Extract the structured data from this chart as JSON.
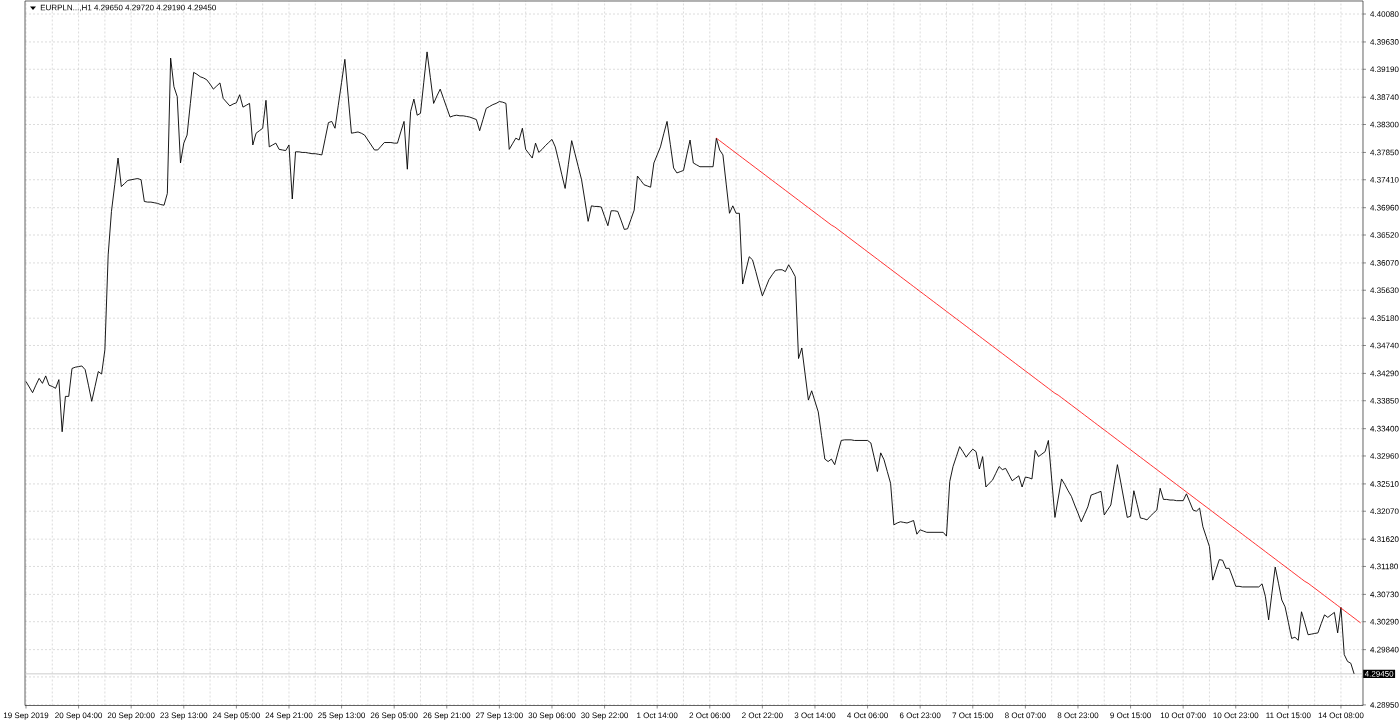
{
  "chart_data": {
    "type": "line",
    "title": "EURPLN...,H1 4.29650 4.29720 4.29190 4.29450",
    "grid": true,
    "categories": [
      "19 Sep 2019",
      null,
      null,
      null,
      null,
      null,
      null,
      null,
      null,
      null,
      null,
      null,
      null,
      null,
      null,
      null,
      "20 Sep 04:00",
      null,
      null,
      null,
      null,
      null,
      null,
      null,
      null,
      null,
      null,
      null,
      null,
      null,
      null,
      null,
      "20 Sep 20:00",
      null,
      null,
      null,
      null,
      null,
      null,
      null,
      null,
      null,
      null,
      null,
      null,
      null,
      null,
      null,
      "23 Sep 13:00",
      null,
      null,
      null,
      null,
      null,
      null,
      null,
      null,
      null,
      null,
      null,
      null,
      null,
      null,
      null,
      "24 Sep 05:00",
      null,
      null,
      null,
      null,
      null,
      null,
      null,
      null,
      null,
      null,
      null,
      null,
      null,
      null,
      null,
      "24 Sep 21:00",
      null,
      null,
      null,
      null,
      null,
      null,
      null,
      null,
      null,
      null,
      null,
      null,
      null,
      null,
      null,
      "25 Sep 13:00",
      null,
      null,
      null,
      null,
      null,
      null,
      null,
      null,
      null,
      null,
      null,
      null,
      null,
      null,
      null,
      "26 Sep 05:00",
      null,
      null,
      null,
      null,
      null,
      null,
      null,
      null,
      null,
      null,
      null,
      null,
      null,
      null,
      null,
      "26 Sep 21:00",
      null,
      null,
      null,
      null,
      null,
      null,
      null,
      null,
      null,
      null,
      null,
      null,
      null,
      null,
      null,
      "27 Sep 13:00",
      null,
      null,
      null,
      null,
      null,
      null,
      null,
      null,
      null,
      null,
      null,
      null,
      null,
      null,
      null,
      "30 Sep 06:00",
      null,
      null,
      null,
      null,
      null,
      null,
      null,
      null,
      null,
      null,
      null,
      null,
      null,
      null,
      null,
      "30 Sep 22:00",
      null,
      null,
      null,
      null,
      null,
      null,
      null,
      null,
      null,
      null,
      null,
      null,
      null,
      null,
      null,
      "1 Oct 14:00",
      null,
      null,
      null,
      null,
      null,
      null,
      null,
      null,
      null,
      null,
      null,
      null,
      null,
      null,
      null,
      "2 Oct 06:00",
      null,
      null,
      null,
      null,
      null,
      null,
      null,
      null,
      null,
      null,
      null,
      null,
      null,
      null,
      null,
      "2 Oct 22:00",
      null,
      null,
      null,
      null,
      null,
      null,
      null,
      null,
      null,
      null,
      null,
      null,
      null,
      null,
      null,
      "3 Oct 14:00",
      null,
      null,
      null,
      null,
      null,
      null,
      null,
      null,
      null,
      null,
      null,
      null,
      null,
      null,
      null,
      "4 Oct 06:00",
      null,
      null,
      null,
      null,
      null,
      null,
      null,
      null,
      null,
      null,
      null,
      null,
      null,
      null,
      null,
      "6 Oct 23:00",
      null,
      null,
      null,
      null,
      null,
      null,
      null,
      null,
      null,
      null,
      null,
      null,
      null,
      null,
      null,
      "7 Oct 15:00",
      null,
      null,
      null,
      null,
      null,
      null,
      null,
      null,
      null,
      null,
      null,
      null,
      null,
      null,
      null,
      "8 Oct 07:00",
      null,
      null,
      null,
      null,
      null,
      null,
      null,
      null,
      null,
      null,
      null,
      null,
      null,
      null,
      null,
      "8 Oct 23:00",
      null,
      null,
      null,
      null,
      null,
      null,
      null,
      null,
      null,
      null,
      null,
      null,
      null,
      null,
      null,
      "9 Oct 15:00",
      null,
      null,
      null,
      null,
      null,
      null,
      null,
      null,
      null,
      null,
      null,
      null,
      null,
      null,
      null,
      "10 Oct 07:00",
      null,
      null,
      null,
      null,
      null,
      null,
      null,
      null,
      null,
      null,
      null,
      null,
      null,
      null,
      null,
      "10 Oct 23:00",
      null,
      null,
      null,
      null,
      null,
      null,
      null,
      null,
      null,
      null,
      null,
      null,
      null,
      null,
      null,
      "11 Oct 15:00",
      null,
      null,
      null,
      null,
      null,
      null,
      null,
      null,
      null,
      null,
      null,
      null,
      null,
      null,
      null,
      "14 Oct 08:00",
      null,
      null,
      null,
      null,
      null,
      null
    ],
    "ylim": [
      4.2894,
      4.4029
    ],
    "yticks": [
      {
        "value": 4.4008,
        "label": "4.40080"
      },
      {
        "value": 4.3963,
        "label": "4.39630"
      },
      {
        "value": 4.3919,
        "label": "4.39190"
      },
      {
        "value": 4.3874,
        "label": "4.38740"
      },
      {
        "value": 4.383,
        "label": "4.38300"
      },
      {
        "value": 4.3785,
        "label": "4.37850"
      },
      {
        "value": 4.3741,
        "label": "4.37410"
      },
      {
        "value": 4.3696,
        "label": "4.36960"
      },
      {
        "value": 4.3652,
        "label": "4.36520"
      },
      {
        "value": 4.3607,
        "label": "4.36070"
      },
      {
        "value": 4.3563,
        "label": "4.35630"
      },
      {
        "value": 4.3518,
        "label": "4.35180"
      },
      {
        "value": 4.3474,
        "label": "4.34740"
      },
      {
        "value": 4.3429,
        "label": "4.34290"
      },
      {
        "value": 4.3385,
        "label": "4.33850"
      },
      {
        "value": 4.334,
        "label": "4.33400"
      },
      {
        "value": 4.3296,
        "label": "4.32960"
      },
      {
        "value": 4.3251,
        "label": "4.32510"
      },
      {
        "value": 4.3207,
        "label": "4.32070"
      },
      {
        "value": 4.3162,
        "label": "4.31620"
      },
      {
        "value": 4.3118,
        "label": "4.31180"
      },
      {
        "value": 4.3073,
        "label": "4.30730"
      },
      {
        "value": 4.3029,
        "label": "4.30290"
      },
      {
        "value": 4.2984,
        "label": "4.29840"
      },
      {
        "value": 4.294,
        "label": null
      },
      {
        "value": 4.2895,
        "label": "4.28950"
      }
    ],
    "ref_lines": [
      {
        "axis": "y",
        "value": 4.2945,
        "label": "4.29450",
        "color": "#c0c0c0"
      }
    ],
    "series": [
      {
        "color": "#000000",
        "values": [
          4.3416,
          4.3407,
          4.3398,
          4.341,
          4.3421,
          4.3413,
          4.3425,
          4.341,
          4.3408,
          4.3405,
          4.3419,
          4.3335,
          4.3392,
          4.3392,
          4.3437,
          4.3439,
          4.344,
          4.3441,
          4.3435,
          4.341,
          4.3384,
          4.3408,
          4.3432,
          4.3428,
          4.3467,
          4.362,
          4.369,
          4.3733,
          4.3776,
          4.373,
          4.3735,
          4.374,
          4.3741,
          4.3742,
          4.3743,
          4.3741,
          4.3706,
          4.3705,
          4.3705,
          4.3704,
          4.3703,
          4.3701,
          4.37,
          4.3719,
          4.3937,
          4.3891,
          4.3875,
          4.3768,
          4.38,
          4.3813,
          4.3864,
          4.3914,
          4.3911,
          4.3907,
          4.3905,
          4.3902,
          4.3895,
          4.3887,
          4.3892,
          4.3897,
          4.3872,
          4.3866,
          4.386,
          4.3863,
          4.3865,
          4.3878,
          4.3858,
          4.3861,
          4.3864,
          4.3797,
          4.3816,
          4.382,
          4.3824,
          4.3869,
          4.3794,
          4.3797,
          4.38,
          4.379,
          4.3789,
          4.3788,
          4.3797,
          4.371,
          4.3786,
          4.3786,
          4.3785,
          4.3785,
          4.3784,
          4.3783,
          4.3783,
          4.3782,
          4.3781,
          4.3807,
          4.3833,
          4.3835,
          4.3824,
          4.3861,
          4.3898,
          4.3935,
          4.3876,
          4.3816,
          4.3817,
          4.3818,
          4.3816,
          4.3813,
          4.3805,
          4.3797,
          4.3789,
          4.3789,
          4.3795,
          4.3801,
          4.3801,
          4.3801,
          4.38,
          4.38,
          4.3818,
          4.3835,
          4.3758,
          4.3851,
          4.3871,
          4.3845,
          4.3848,
          4.3898,
          4.3947,
          4.3906,
          4.3864,
          4.3876,
          4.3887,
          4.3872,
          4.3857,
          4.3842,
          4.3844,
          4.3845,
          4.3844,
          4.3844,
          4.3843,
          4.3842,
          4.384,
          4.3838,
          4.382,
          4.3838,
          4.3856,
          4.3859,
          4.3862,
          4.3864,
          4.3867,
          4.3866,
          4.3864,
          4.379,
          4.3799,
          4.3808,
          4.3805,
          4.3824,
          4.379,
          4.3783,
          4.3776,
          4.38,
          4.3785,
          4.379,
          4.3796,
          4.3801,
          4.3806,
          4.3794,
          4.3772,
          4.3749,
          4.3727,
          4.3766,
          4.3804,
          4.3783,
          4.3762,
          4.3741,
          4.3708,
          4.3674,
          4.3699,
          4.3698,
          4.3698,
          4.3697,
          4.3682,
          4.3667,
          4.3691,
          4.3691,
          4.369,
          4.3676,
          4.3661,
          4.3662,
          4.3677,
          4.3692,
          4.3747,
          4.374,
          4.3733,
          4.3731,
          4.3729,
          4.3768,
          4.3781,
          4.3794,
          4.3815,
          4.3835,
          4.3798,
          4.376,
          4.3752,
          4.3754,
          4.3756,
          4.3781,
          4.3805,
          4.3768,
          4.3765,
          4.3762,
          4.3762,
          4.3762,
          4.3762,
          4.3762,
          4.3808,
          4.3789,
          4.3781,
          4.3734,
          4.3687,
          4.3699,
          4.3687,
          4.3687,
          4.3573,
          4.3595,
          4.3617,
          4.3612,
          4.3593,
          4.3573,
          4.3554,
          4.3567,
          4.358,
          4.3588,
          4.3595,
          4.3596,
          4.3596,
          4.3593,
          4.3604,
          4.3595,
          4.3585,
          4.3453,
          4.347,
          4.3428,
          4.3386,
          4.3401,
          4.3384,
          4.3367,
          4.3329,
          4.3291,
          4.3287,
          4.3291,
          4.3282,
          4.3302,
          4.3321,
          4.3322,
          4.3322,
          4.3322,
          4.3321,
          4.3321,
          4.3321,
          4.3321,
          4.3321,
          4.3317,
          4.3294,
          4.3271,
          4.3301,
          4.329,
          4.3271,
          4.3252,
          4.3185,
          4.3188,
          4.319,
          4.3189,
          4.3188,
          4.319,
          4.3192,
          4.317,
          4.3177,
          4.3175,
          4.3173,
          4.3173,
          4.3173,
          4.3173,
          4.3173,
          4.3173,
          4.3167,
          4.3255,
          4.3279,
          4.3295,
          4.3311,
          4.3303,
          4.3294,
          4.3301,
          4.3307,
          4.3303,
          4.3275,
          4.3295,
          4.3246,
          4.3252,
          4.3257,
          4.3268,
          4.3279,
          4.3274,
          4.3276,
          4.3266,
          4.3256,
          4.326,
          4.3264,
          4.3246,
          4.3262,
          4.3261,
          4.3259,
          4.3305,
          4.3295,
          4.3299,
          4.3303,
          4.3321,
          4.3259,
          4.3197,
          4.3228,
          4.3259,
          4.325,
          4.324,
          4.3231,
          4.3217,
          4.3204,
          4.319,
          4.3202,
          4.3214,
          4.3233,
          4.3235,
          4.3237,
          4.3239,
          4.3201,
          4.3209,
          4.3217,
          4.325,
          4.3282,
          4.3254,
          4.3225,
          4.3197,
          4.3199,
          4.324,
          4.3218,
          4.3196,
          4.3195,
          4.3193,
          4.3199,
          4.3204,
          4.3209,
          4.3244,
          4.3226,
          4.3226,
          4.3225,
          4.3225,
          4.3224,
          4.3224,
          4.3224,
          4.3235,
          4.3222,
          4.3209,
          4.3207,
          4.3212,
          4.3182,
          4.3166,
          4.315,
          4.3096,
          4.3113,
          4.3129,
          4.3128,
          4.3115,
          4.3115,
          4.3101,
          4.3086,
          4.3086,
          4.3085,
          4.3085,
          4.3085,
          4.3085,
          4.3085,
          4.3085,
          4.309,
          4.307,
          4.3032,
          4.3075,
          4.3117,
          4.3091,
          4.3064,
          4.3053,
          4.3028,
          4.3002,
          4.3004,
          4.2999,
          4.3045,
          4.3027,
          4.3008,
          4.3009,
          4.301,
          4.3011,
          4.3026,
          4.304,
          4.3036,
          4.304,
          4.3044,
          4.3011,
          4.3052,
          4.2976,
          4.2965,
          4.2962,
          4.2945,
          null,
          null
        ]
      },
      {
        "color": "#ff0000",
        "values": [
          null,
          null,
          null,
          null,
          null,
          null,
          null,
          null,
          null,
          null,
          null,
          null,
          null,
          null,
          null,
          null,
          null,
          null,
          null,
          null,
          null,
          null,
          null,
          null,
          null,
          null,
          null,
          null,
          null,
          null,
          null,
          null,
          null,
          null,
          null,
          null,
          null,
          null,
          null,
          null,
          null,
          null,
          null,
          null,
          null,
          null,
          null,
          null,
          null,
          null,
          null,
          null,
          null,
          null,
          null,
          null,
          null,
          null,
          null,
          null,
          null,
          null,
          null,
          null,
          null,
          null,
          null,
          null,
          null,
          null,
          null,
          null,
          null,
          null,
          null,
          null,
          null,
          null,
          null,
          null,
          null,
          null,
          null,
          null,
          null,
          null,
          null,
          null,
          null,
          null,
          null,
          null,
          null,
          null,
          null,
          null,
          null,
          null,
          null,
          null,
          null,
          null,
          null,
          null,
          null,
          null,
          null,
          null,
          null,
          null,
          null,
          null,
          null,
          null,
          null,
          null,
          null,
          null,
          null,
          null,
          null,
          null,
          null,
          null,
          null,
          null,
          null,
          null,
          null,
          null,
          null,
          null,
          null,
          null,
          null,
          null,
          null,
          null,
          null,
          null,
          null,
          null,
          null,
          null,
          null,
          null,
          null,
          null,
          null,
          null,
          null,
          null,
          null,
          null,
          null,
          null,
          null,
          null,
          null,
          null,
          null,
          null,
          null,
          null,
          null,
          null,
          null,
          null,
          null,
          null,
          null,
          null,
          null,
          null,
          null,
          null,
          null,
          null,
          null,
          null,
          null,
          null,
          null,
          null,
          null,
          null,
          null,
          null,
          null,
          null,
          null,
          null,
          null,
          null,
          null,
          null,
          null,
          null,
          null,
          null,
          null,
          null,
          null,
          null,
          null,
          null,
          null,
          null,
          null,
          null,
          4.3808,
          4.3804,
          4.38,
          4.3796,
          4.3792,
          4.3788,
          4.3784,
          4.378,
          4.3776,
          4.3772,
          4.3768,
          4.3764,
          4.376,
          4.3756,
          4.3752,
          4.3748,
          4.3744,
          4.374,
          4.3736,
          4.3732,
          4.3728,
          4.3724,
          4.372,
          4.3716,
          4.3712,
          4.3708,
          4.3704,
          4.37,
          4.3696,
          4.3692,
          4.3688,
          4.3684,
          4.368,
          4.3676,
          4.3672,
          4.3668,
          4.3665,
          4.3661,
          4.3657,
          4.3653,
          4.3649,
          4.3645,
          4.3641,
          4.3637,
          4.3633,
          4.3629,
          4.3625,
          4.3621,
          4.3617,
          4.3613,
          4.3609,
          4.3605,
          4.3601,
          4.3597,
          4.3593,
          4.3589,
          4.3585,
          4.3581,
          4.3577,
          4.3573,
          4.3569,
          4.3565,
          4.3561,
          4.3557,
          4.3553,
          4.3549,
          4.3545,
          4.3541,
          4.3537,
          4.3533,
          4.3529,
          4.3525,
          4.3521,
          4.3517,
          4.3513,
          4.3509,
          4.3505,
          4.3501,
          4.3497,
          4.3493,
          4.3489,
          4.3485,
          4.3481,
          4.3477,
          4.3473,
          4.3469,
          4.3465,
          4.3461,
          4.3457,
          4.3453,
          4.3449,
          4.3445,
          4.3441,
          4.3437,
          4.3433,
          4.3429,
          4.3425,
          4.3421,
          4.3417,
          4.3413,
          4.3409,
          4.3405,
          4.3401,
          4.3397,
          4.3394,
          4.339,
          4.3386,
          4.3382,
          4.3378,
          4.3374,
          4.337,
          4.3366,
          4.3362,
          4.3358,
          4.3354,
          4.335,
          4.3346,
          4.3342,
          4.3338,
          4.3334,
          4.333,
          4.3326,
          4.3322,
          4.3318,
          4.3314,
          4.331,
          4.3306,
          4.3302,
          4.3298,
          4.3294,
          4.329,
          4.3286,
          4.3282,
          4.3278,
          4.3274,
          4.327,
          4.3266,
          4.3262,
          4.3258,
          4.3254,
          4.325,
          4.3246,
          4.3242,
          4.3238,
          4.3234,
          4.323,
          4.3226,
          4.3222,
          4.3218,
          4.3214,
          4.321,
          4.3206,
          4.3202,
          4.3198,
          4.3194,
          4.319,
          4.3186,
          4.3182,
          4.3178,
          4.3174,
          4.317,
          4.3166,
          4.3162,
          4.3158,
          4.3154,
          4.315,
          4.3146,
          4.3142,
          4.3138,
          4.3134,
          4.313,
          4.3126,
          4.3122,
          4.3118,
          4.3114,
          4.311,
          4.3106,
          4.3102,
          4.3098,
          4.3094,
          4.3091,
          4.3087,
          4.3083,
          4.3079,
          4.3075,
          4.3071,
          4.3067,
          4.3063,
          4.3059,
          4.3055,
          4.3051,
          4.3047,
          4.3043,
          4.3039,
          4.3035,
          4.3031,
          4.3027
        ]
      }
    ]
  }
}
